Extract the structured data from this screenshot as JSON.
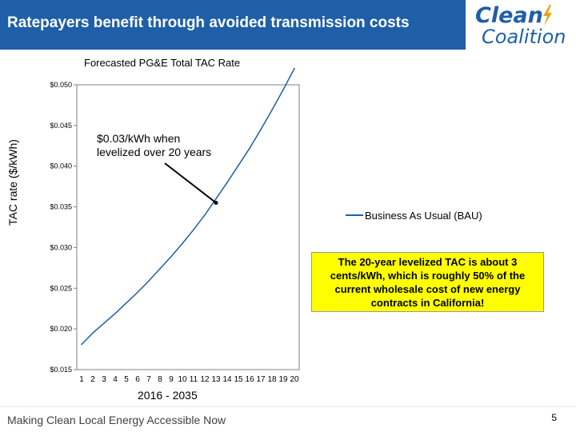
{
  "header": {
    "title": "Ratepayers benefit through avoided transmission costs",
    "logo_word1": "Clean",
    "logo_word2": "Coalition"
  },
  "colors": {
    "brand_blue": "#1f5fa8",
    "note_yellow": "#ffff00",
    "series_line": "#1f5fa8"
  },
  "chart_data": {
    "type": "line",
    "title": "Forecasted PG&E Total TAC Rate",
    "ylabel": "TAC rate ($/kWh)",
    "xlabel": "2016 - 2035",
    "x": [
      1,
      2,
      3,
      4,
      5,
      6,
      7,
      8,
      9,
      10,
      11,
      12,
      13,
      14,
      15,
      16,
      17,
      18,
      19,
      20
    ],
    "x_tick_labels": [
      "1",
      "2",
      "3",
      "4",
      "5",
      "6",
      "7",
      "8",
      "9",
      "10",
      "11",
      "12",
      "13",
      "14",
      "15",
      "16",
      "17",
      "18",
      "19",
      "20"
    ],
    "ylim": [
      0.015,
      0.05
    ],
    "y_ticks": [
      0.015,
      0.02,
      0.025,
      0.03,
      0.035,
      0.04,
      0.045,
      0.05
    ],
    "y_tick_labels": [
      "$0.015",
      "$0.020",
      "$0.025",
      "$0.030",
      "$0.035",
      "$0.040",
      "$0.045",
      "$0.050"
    ],
    "grid": false,
    "legend_position": "right",
    "series": [
      {
        "name": "Business As Usual (BAU)",
        "values": [
          0.0181,
          0.0195,
          0.0207,
          0.0219,
          0.0232,
          0.0245,
          0.0259,
          0.0274,
          0.0289,
          0.0305,
          0.0322,
          0.034,
          0.036,
          0.038,
          0.0401,
          0.0422,
          0.0445,
          0.0469,
          0.0494,
          0.052
        ]
      }
    ],
    "annotation": {
      "text": "$0.03/kWh when levelized over 20 years",
      "point_x": 13,
      "point_y": 0.0355
    }
  },
  "note": {
    "text": "The 20-year levelized TAC is about 3 cents/kWh, which is roughly 50% of the current wholesale cost of new energy contracts in California!"
  },
  "footer": {
    "tagline": "Making Clean Local Energy Accessible Now",
    "page_number": "5"
  }
}
